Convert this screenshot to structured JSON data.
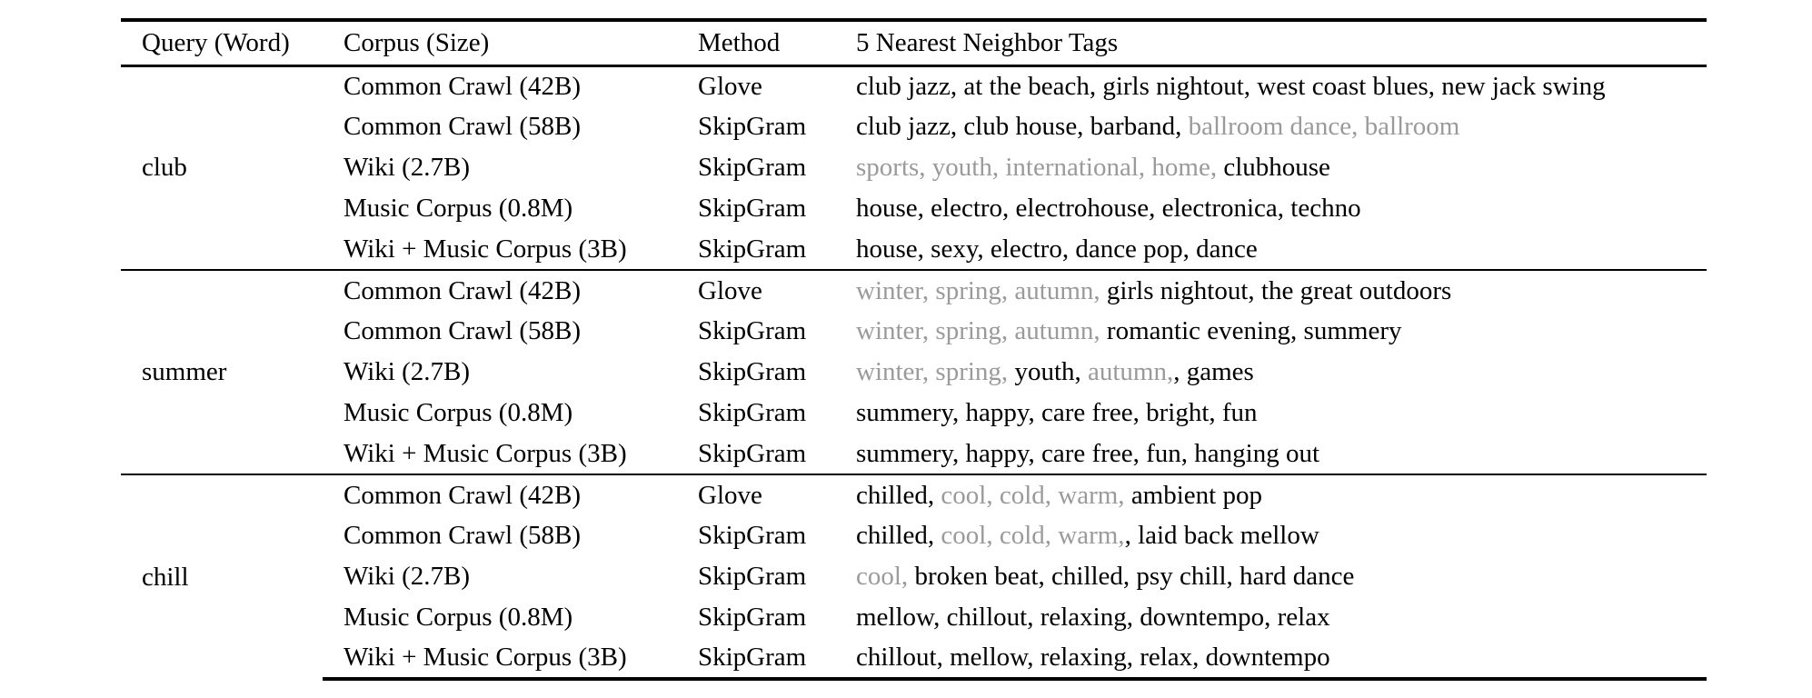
{
  "table": {
    "headers": [
      "Query (Word)",
      "Corpus (Size)",
      "Method",
      "5 Nearest Neighbor Tags"
    ],
    "groups": [
      {
        "query": "club",
        "rows": [
          {
            "corpus": "Common Crawl (42B)",
            "method": "Glove",
            "tags": [
              {
                "text": "club jazz, at the beach, girls nightout, west coast blues, new jack swing",
                "gray": false
              }
            ]
          },
          {
            "corpus": "Common Crawl (58B)",
            "method": "SkipGram",
            "tags": [
              {
                "text": "club jazz, club house, barband, ",
                "gray": false
              },
              {
                "text": "ballroom dance, ballroom",
                "gray": true
              }
            ]
          },
          {
            "corpus": "Wiki (2.7B)",
            "method": "SkipGram",
            "tags": [
              {
                "text": "sports, youth, international, home, ",
                "gray": true
              },
              {
                "text": "clubhouse",
                "gray": false
              }
            ]
          },
          {
            "corpus": "Music Corpus (0.8M)",
            "method": "SkipGram",
            "tags": [
              {
                "text": "house, electro, electrohouse, electronica, techno",
                "gray": false
              }
            ]
          },
          {
            "corpus": "Wiki + Music Corpus (3B)",
            "method": "SkipGram",
            "tags": [
              {
                "text": "house, sexy, electro, dance pop, dance",
                "gray": false
              }
            ]
          }
        ]
      },
      {
        "query": "summer",
        "rows": [
          {
            "corpus": "Common Crawl (42B)",
            "method": "Glove",
            "tags": [
              {
                "text": "winter, spring, autumn, ",
                "gray": true
              },
              {
                "text": "girls nightout, the great outdoors",
                "gray": false
              }
            ]
          },
          {
            "corpus": "Common Crawl (58B)",
            "method": "SkipGram",
            "tags": [
              {
                "text": "winter, spring, autumn, ",
                "gray": true
              },
              {
                "text": "romantic evening, summery",
                "gray": false
              }
            ]
          },
          {
            "corpus": "Wiki (2.7B)",
            "method": "SkipGram",
            "tags": [
              {
                "text": "winter, spring, ",
                "gray": true
              },
              {
                "text": "youth, ",
                "gray": false
              },
              {
                "text": "autumn,",
                "gray": true
              },
              {
                "text": ", games",
                "gray": false
              }
            ]
          },
          {
            "corpus": "Music Corpus (0.8M)",
            "method": "SkipGram",
            "tags": [
              {
                "text": "summery, happy, care free, bright, fun",
                "gray": false
              }
            ]
          },
          {
            "corpus": "Wiki + Music Corpus (3B)",
            "method": "SkipGram",
            "tags": [
              {
                "text": "summery, happy, care free, fun, hanging out",
                "gray": false
              }
            ]
          }
        ]
      },
      {
        "query": "chill",
        "rows": [
          {
            "corpus": "Common Crawl (42B)",
            "method": "Glove",
            "tags": [
              {
                "text": "chilled, ",
                "gray": false
              },
              {
                "text": "cool, cold, warm, ",
                "gray": true
              },
              {
                "text": "ambient pop",
                "gray": false
              }
            ]
          },
          {
            "corpus": "Common Crawl (58B)",
            "method": "SkipGram",
            "tags": [
              {
                "text": "chilled, ",
                "gray": false
              },
              {
                "text": "cool, cold, warm,",
                "gray": true
              },
              {
                "text": ", laid back mellow",
                "gray": false
              }
            ]
          },
          {
            "corpus": "Wiki (2.7B)",
            "method": "SkipGram",
            "tags": [
              {
                "text": "cool, ",
                "gray": true
              },
              {
                "text": "broken beat, chilled, psy chill, hard dance",
                "gray": false
              }
            ]
          },
          {
            "corpus": "Music Corpus (0.8M)",
            "method": "SkipGram",
            "tags": [
              {
                "text": "mellow, chillout, relaxing, downtempo, relax",
                "gray": false
              }
            ]
          },
          {
            "corpus": "Wiki + Music Corpus (3B)",
            "method": "SkipGram",
            "tags": [
              {
                "text": "chillout, mellow, relaxing, relax, downtempo",
                "gray": false
              }
            ]
          }
        ]
      }
    ]
  },
  "colors": {
    "text": "#000000",
    "gray_tag": "#9a9a9a",
    "rules": "#000000"
  }
}
